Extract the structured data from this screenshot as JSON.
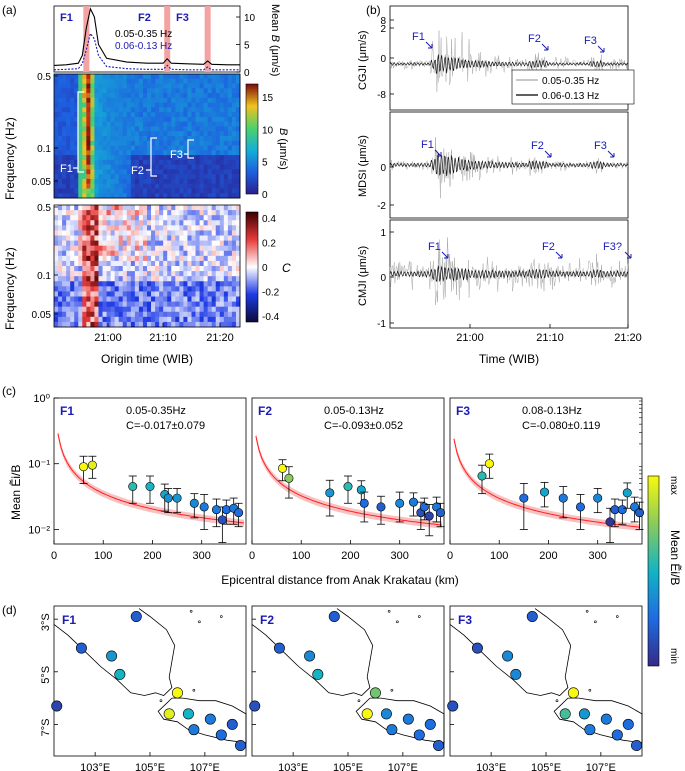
{
  "panels": {
    "a": {
      "label": "(a)"
    },
    "b": {
      "label": "(b)"
    },
    "c": {
      "label": "(c)"
    },
    "d": {
      "label": "(d)"
    }
  },
  "colors": {
    "band_shade": "#f4a3a3",
    "blue_text": "#1b1bb5",
    "fit_line": "#ff2020",
    "fit_band": "#f7b2b2",
    "wave_broad": "#a8a8a8",
    "wave_narrow": "#000000",
    "land": "#ffffff",
    "coast": "#000000"
  },
  "chart_data": [
    {
      "id": "a-top",
      "type": "line",
      "xlabel": "",
      "ylabel": "Mean B (μm/s)",
      "ylabel_parts": [
        "Mean ",
        "B",
        " (μm/s)"
      ],
      "xlim": [
        20.87,
        21.33
      ],
      "ylim": [
        0,
        12
      ],
      "yticks": [
        0,
        5,
        10
      ],
      "event_labels": [
        "F1",
        "F2",
        "F3"
      ],
      "event_times": [
        20.95,
        21.15,
        21.25
      ],
      "series": [
        {
          "name": "0.05-0.35 Hz",
          "color": "#000000",
          "x": [
            20.87,
            20.9,
            20.93,
            20.94,
            20.95,
            20.96,
            20.97,
            20.98,
            21.0,
            21.05,
            21.1,
            21.14,
            21.15,
            21.16,
            21.2,
            21.24,
            21.25,
            21.26,
            21.3,
            21.33
          ],
          "y": [
            1.2,
            1.3,
            1.6,
            3,
            8,
            11.5,
            10,
            5,
            2.5,
            1.8,
            1.6,
            1.6,
            2.4,
            1.6,
            1.5,
            1.4,
            2.0,
            1.4,
            1.3,
            1.3
          ]
        },
        {
          "name": "0.06-0.13 Hz",
          "color": "#1b1bb5",
          "x": [
            20.87,
            20.9,
            20.93,
            20.94,
            20.95,
            20.96,
            20.97,
            20.98,
            21.0,
            21.05,
            21.1,
            21.14,
            21.15,
            21.16,
            21.2,
            21.24,
            21.25,
            21.26,
            21.3,
            21.33
          ],
          "y": [
            0.4,
            0.5,
            0.6,
            1.5,
            4,
            7,
            6,
            3,
            1.0,
            0.6,
            0.5,
            0.5,
            1.2,
            0.5,
            0.4,
            0.4,
            0.9,
            0.4,
            0.4,
            0.4
          ]
        }
      ]
    },
    {
      "id": "a-mid",
      "type": "heatmap",
      "title": "",
      "ylabel": "Frequency (Hz)",
      "yticks": [
        0.05,
        0.1,
        0.5
      ],
      "ytick_labels": [
        "0.05",
        "0.1",
        "0.5"
      ],
      "colorbar": {
        "label_parts": [
          "B",
          " (μm/s)"
        ],
        "range": [
          0,
          17
        ],
        "ticks": [
          0,
          5,
          10,
          15
        ]
      },
      "annotations": [
        "F1",
        "F2",
        "F3"
      ]
    },
    {
      "id": "a-bot",
      "type": "heatmap",
      "xlabel": "Origin time (WIB)",
      "ylabel": "Frequency (Hz)",
      "xticks": [
        "21:00",
        "21:10",
        "21:20"
      ],
      "yticks": [
        "0.05",
        "0.1",
        "0.5"
      ],
      "colorbar": {
        "label": "C",
        "range": [
          -0.45,
          0.45
        ],
        "ticks": [
          "-0.4",
          "-0.2",
          "0",
          "0.2",
          "0.4"
        ]
      }
    },
    {
      "id": "b",
      "type": "line",
      "xlabel": "Time (WIB)",
      "xticks": [
        "21:00",
        "21:10",
        "21:20"
      ],
      "legend": [
        "0.05-0.35 Hz",
        "0.06-0.13 Hz"
      ],
      "legend_position": "right",
      "subplots": [
        {
          "station": "CGJI",
          "ylabel": "CGJI (μm/s)",
          "ylim": [
            -12,
            12
          ],
          "yticks": [
            "8",
            "0",
            "-8"
          ],
          "arrows": [
            "F1",
            "F2",
            "F3"
          ],
          "peak_broad": 11,
          "peak_narrow": 4
        },
        {
          "station": "MDSI",
          "ylabel": "MDSI (μm/s)",
          "ylim": [
            -3,
            3
          ],
          "yticks": [
            "2",
            "0",
            "-2"
          ],
          "arrows": [
            "F1",
            "F2",
            "F3"
          ],
          "peak_broad": 2.6,
          "peak_narrow": 1.2
        },
        {
          "station": "CMJI",
          "ylabel": "CMJI (μm/s)",
          "ylim": [
            -1.3,
            1.3
          ],
          "yticks": [
            "1",
            "0",
            "-1"
          ],
          "arrows": [
            "F1",
            "F2",
            "F3?"
          ],
          "peak_broad": 0.9,
          "peak_narrow": 0.3
        }
      ]
    },
    {
      "id": "c",
      "type": "scatter",
      "xlabel": "Epicentral distance from Anak Krakatau (km)",
      "ylabel": "Mean Ẽi/B",
      "yscale": "log",
      "ylim": [
        0.006,
        1.0
      ],
      "xlim": [
        0,
        390
      ],
      "xticks": [
        "0",
        "100",
        "200",
        "300"
      ],
      "yticks": [
        "10⁻²",
        "10⁻¹",
        "10⁰"
      ],
      "colorbar": {
        "label": "Mean Ẽi/B",
        "min_label": "min",
        "max_label": "max"
      },
      "subplots": [
        {
          "label": "F1",
          "band": "0.05-0.35Hz",
          "C_text": "C=-0.017±0.079",
          "fit_a": 0.06,
          "fit_c": 1.0,
          "points": [
            [
              60,
              0.09,
              0.04,
              1.0
            ],
            [
              78,
              0.095,
              0.035,
              0.95
            ],
            [
              160,
              0.045,
              0.02,
              0.55
            ],
            [
              195,
              0.045,
              0.02,
              0.5
            ],
            [
              225,
              0.034,
              0.015,
              0.45
            ],
            [
              232,
              0.03,
              0.012,
              0.38
            ],
            [
              250,
              0.03,
              0.012,
              0.4
            ],
            [
              285,
              0.025,
              0.01,
              0.35
            ],
            [
              305,
              0.022,
              0.012,
              0.3
            ],
            [
              330,
              0.02,
              0.009,
              0.3
            ],
            [
              342,
              0.014,
              0.008,
              0.15
            ],
            [
              350,
              0.02,
              0.008,
              0.25
            ],
            [
              365,
              0.021,
              0.009,
              0.3
            ],
            [
              375,
              0.018,
              0.007,
              0.25
            ]
          ]
        },
        {
          "label": "F2",
          "band": "0.05-0.13Hz",
          "C_text": "C=-0.093±0.052",
          "fit_a": 0.055,
          "fit_c": 1.0,
          "points": [
            [
              62,
              0.085,
              0.03,
              1.0
            ],
            [
              75,
              0.06,
              0.03,
              0.75
            ],
            [
              158,
              0.036,
              0.02,
              0.4
            ],
            [
              195,
              0.045,
              0.02,
              0.55
            ],
            [
              222,
              0.04,
              0.015,
              0.45
            ],
            [
              228,
              0.025,
              0.012,
              0.25
            ],
            [
              262,
              0.022,
              0.01,
              0.2
            ],
            [
              300,
              0.025,
              0.012,
              0.35
            ],
            [
              328,
              0.026,
              0.01,
              0.3
            ],
            [
              343,
              0.018,
              0.008,
              0.15
            ],
            [
              350,
              0.022,
              0.008,
              0.25
            ],
            [
              360,
              0.016,
              0.008,
              0.1
            ],
            [
              375,
              0.022,
              0.009,
              0.3
            ],
            [
              383,
              0.018,
              0.007,
              0.2
            ]
          ]
        },
        {
          "label": "F3",
          "band": "0.08-0.13Hz",
          "C_text": "C=-0.080±0.119",
          "fit_a": 0.05,
          "fit_c": 1.0,
          "points": [
            [
              65,
              0.065,
              0.03,
              0.55
            ],
            [
              80,
              0.1,
              0.04,
              1.0
            ],
            [
              150,
              0.03,
              0.02,
              0.25
            ],
            [
              192,
              0.037,
              0.015,
              0.45
            ],
            [
              230,
              0.03,
              0.015,
              0.3
            ],
            [
              265,
              0.022,
              0.012,
              0.25
            ],
            [
              300,
              0.03,
              0.012,
              0.35
            ],
            [
              325,
              0.013,
              0.008,
              0.05
            ],
            [
              335,
              0.02,
              0.009,
              0.2
            ],
            [
              350,
              0.02,
              0.008,
              0.25
            ],
            [
              360,
              0.036,
              0.015,
              0.45
            ],
            [
              375,
              0.022,
              0.009,
              0.3
            ],
            [
              385,
              0.018,
              0.008,
              0.2
            ]
          ]
        }
      ]
    },
    {
      "id": "d",
      "type": "scatter",
      "xticks": [
        "103°E",
        "105°E",
        "107°E"
      ],
      "yticks": [
        "3°S",
        "5°S",
        "7°S"
      ],
      "lon_range": [
        101.5,
        108.5
      ],
      "lat_range": [
        -8.2,
        -2.5
      ],
      "tick_lons": [
        103,
        105,
        107
      ],
      "tick_lats": [
        -3,
        -5,
        -7
      ],
      "stations": [
        [
          104.5,
          -2.9
        ],
        [
          102.5,
          -4.1
        ],
        [
          103.6,
          -4.4
        ],
        [
          103.9,
          -5.1
        ],
        [
          101.6,
          -6.3
        ],
        [
          106.0,
          -5.8
        ],
        [
          105.7,
          -6.6
        ],
        [
          106.4,
          -6.6
        ],
        [
          106.6,
          -7.2
        ],
        [
          107.2,
          -6.8
        ],
        [
          107.6,
          -7.4
        ],
        [
          108.0,
          -7.0
        ],
        [
          108.3,
          -7.8
        ]
      ],
      "subplots": [
        {
          "label": "F1",
          "values": [
            0.2,
            0.2,
            0.4,
            0.5,
            0.1,
            1.0,
            0.95,
            0.5,
            0.3,
            0.3,
            0.25,
            0.2,
            0.2
          ]
        },
        {
          "label": "F2",
          "values": [
            0.2,
            0.2,
            0.35,
            0.5,
            0.15,
            0.7,
            1.0,
            0.35,
            0.3,
            0.3,
            0.25,
            0.25,
            0.2
          ]
        },
        {
          "label": "F3",
          "values": [
            0.2,
            0.15,
            0.35,
            0.35,
            0.15,
            1.0,
            0.6,
            0.4,
            0.3,
            0.3,
            0.25,
            0.25,
            0.2
          ]
        }
      ]
    }
  ]
}
